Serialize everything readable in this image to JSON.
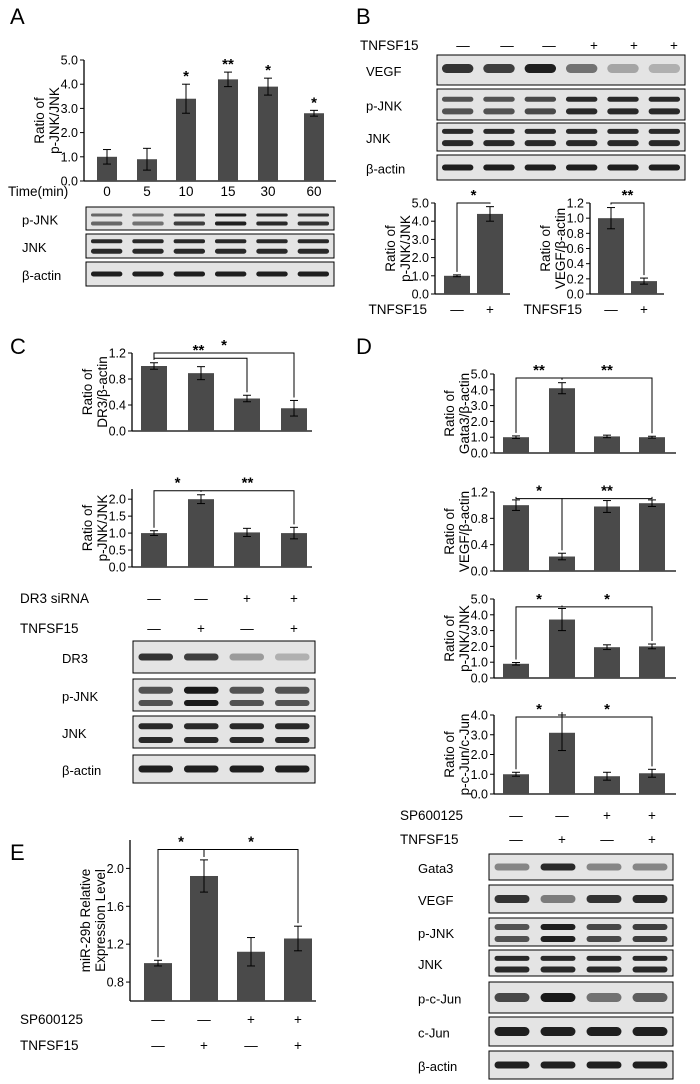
{
  "colors": {
    "bar": "#4a4a4a",
    "axis": "#000000",
    "band": "#141414",
    "blot_bg": "#e4e4e4"
  },
  "panels": [
    {
      "id": "A",
      "label": "A",
      "condition_rows": [
        {
          "label": "Time(min)",
          "values": [
            "0",
            "5",
            "10",
            "15",
            "30",
            "60"
          ]
        }
      ],
      "blots": [
        "p-JNK",
        "JNK",
        "β-actin"
      ]
    },
    {
      "id": "B",
      "label": "B",
      "condition_rows": [
        {
          "label": "TNFSF15",
          "values": [
            "—",
            "—",
            "—",
            "+",
            "+",
            "+"
          ]
        }
      ],
      "blots": [
        "VEGF",
        "p-JNK",
        "JNK",
        "β-actin"
      ]
    },
    {
      "id": "C",
      "label": "C",
      "condition_rows": [
        {
          "label": "DR3 siRNA",
          "values": [
            "—",
            "—",
            "+",
            "+"
          ]
        },
        {
          "label": "TNFSF15",
          "values": [
            "—",
            "+",
            "—",
            "+"
          ]
        }
      ],
      "blots": [
        "DR3",
        "p-JNK",
        "JNK",
        "β-actin"
      ]
    },
    {
      "id": "D",
      "label": "D",
      "condition_rows": [
        {
          "label": "SP600125",
          "values": [
            "—",
            "—",
            "+",
            "+"
          ]
        },
        {
          "label": "TNFSF15",
          "values": [
            "—",
            "+",
            "—",
            "+"
          ]
        }
      ],
      "blots": [
        "Gata3",
        "VEGF",
        "p-JNK",
        "JNK",
        "p-c-Jun",
        "c-Jun",
        "β-actin"
      ]
    },
    {
      "id": "E",
      "label": "E",
      "condition_rows": [
        {
          "label": "SP600125",
          "values": [
            "—",
            "—",
            "+",
            "+"
          ]
        },
        {
          "label": "TNFSF15",
          "values": [
            "—",
            "+",
            "—",
            "+"
          ]
        }
      ]
    }
  ],
  "chart_data": [
    {
      "id": "A-chart",
      "type": "bar",
      "ylabel": [
        "Ratio of",
        "p-JNK/JNK"
      ],
      "ylim": [
        0,
        5
      ],
      "yticks": [
        "0.0",
        "1.0",
        "2.0",
        "3.0",
        "4.0",
        "5.0"
      ],
      "xticklabels": [],
      "values": [
        1.0,
        0.9,
        3.4,
        4.2,
        3.9,
        2.8
      ],
      "errors": [
        0.3,
        0.45,
        0.6,
        0.3,
        0.35,
        0.12
      ],
      "bar_stars": [
        "",
        "",
        "*",
        "**",
        "*",
        "*"
      ],
      "brackets": []
    },
    {
      "id": "B-chart-1",
      "type": "bar",
      "ylabel": [
        "Ratio of",
        "p-JNK/JNK"
      ],
      "ylim": [
        0,
        5
      ],
      "yticks": [
        "0.0",
        "1.0",
        "2.0",
        "3.0",
        "4.0",
        "5.0"
      ],
      "xticklabels": [
        "—",
        "+"
      ],
      "xlabel": "TNFSF15",
      "values": [
        1.0,
        4.4
      ],
      "errors": [
        0.05,
        0.4
      ],
      "bar_stars": [],
      "brackets": [
        {
          "from": 0,
          "to": 1,
          "level": 5.0,
          "label": "*"
        }
      ]
    },
    {
      "id": "B-chart-2",
      "type": "bar",
      "ylabel": [
        "Ratio of",
        "VEGF/β-actin"
      ],
      "ylim": [
        0,
        1.2
      ],
      "yticks": [
        "0.0",
        "0.2",
        "0.4",
        "0.6",
        "0.8",
        "1.0",
        "1.2"
      ],
      "xticklabels": [
        "—",
        "+"
      ],
      "xlabel": "TNFSF15",
      "values": [
        1.0,
        0.17
      ],
      "errors": [
        0.14,
        0.04
      ],
      "bar_stars": [],
      "brackets": [
        {
          "from": 0,
          "to": 1,
          "level": 1.2,
          "label": "**"
        }
      ]
    },
    {
      "id": "C-chart-1",
      "type": "bar",
      "ylabel": [
        "Ratio of",
        "DR3/β-actin"
      ],
      "ylim": [
        0,
        1.2
      ],
      "yticks": [
        "0.0",
        "0.4",
        "0.8",
        "1.2"
      ],
      "xticklabels": [],
      "values": [
        1.0,
        0.89,
        0.5,
        0.35
      ],
      "errors": [
        0.05,
        0.1,
        0.05,
        0.12
      ],
      "bar_stars": [],
      "brackets": [
        {
          "from": 0,
          "to": 2,
          "level": 1.12,
          "label": "**"
        },
        {
          "from": 0,
          "to": 3,
          "level": 1.2,
          "label": "*"
        }
      ]
    },
    {
      "id": "C-chart-2",
      "type": "bar",
      "ylabel": [
        "Ratio of",
        "p-JNK/JNK"
      ],
      "ylim": [
        0,
        2.3
      ],
      "yticks": [
        "0.0",
        "0.5",
        "1.0",
        "1.5",
        "2.0"
      ],
      "xticklabels": [],
      "values": [
        1.0,
        2.0,
        1.02,
        1.0
      ],
      "errors": [
        0.07,
        0.13,
        0.12,
        0.17
      ],
      "bar_stars": [],
      "brackets": [
        {
          "from": 0,
          "to": 1,
          "level": 2.25,
          "label": "*"
        },
        {
          "from": 1,
          "to": 3,
          "level": 2.25,
          "label": "**"
        }
      ]
    },
    {
      "id": "D-chart-1",
      "type": "bar",
      "ylabel": [
        "Ratio of",
        "Gata3/β-actin"
      ],
      "ylim": [
        0,
        5
      ],
      "yticks": [
        "0.0",
        "1.0",
        "2.0",
        "3.0",
        "4.0",
        "5.0"
      ],
      "xticklabels": [],
      "values": [
        1.0,
        4.1,
        1.05,
        1.0
      ],
      "errors": [
        0.08,
        0.35,
        0.08,
        0.06
      ],
      "bar_stars": [],
      "brackets": [
        {
          "from": 0,
          "to": 1,
          "level": 4.75,
          "label": "**"
        },
        {
          "from": 1,
          "to": 3,
          "level": 4.75,
          "label": "**"
        }
      ]
    },
    {
      "id": "D-chart-2",
      "type": "bar",
      "ylabel": [
        "Ratio of",
        "VEGF/β-actin"
      ],
      "ylim": [
        0,
        1.2
      ],
      "yticks": [
        "0.0",
        "0.4",
        "0.8",
        "1.2"
      ],
      "xticklabels": [],
      "values": [
        1.0,
        0.22,
        0.98,
        1.03
      ],
      "errors": [
        0.08,
        0.05,
        0.09,
        0.05
      ],
      "bar_stars": [],
      "brackets": [
        {
          "from": 0,
          "to": 1,
          "level": 1.1,
          "label": "*"
        },
        {
          "from": 1,
          "to": 3,
          "level": 1.1,
          "label": "**"
        }
      ]
    },
    {
      "id": "D-chart-3",
      "type": "bar",
      "ylabel": [
        "Ratio of",
        "p-JNK/JNK"
      ],
      "ylim": [
        0,
        5
      ],
      "yticks": [
        "0.0",
        "1.0",
        "2.0",
        "3.0",
        "4.0",
        "5.0"
      ],
      "xticklabels": [],
      "values": [
        0.9,
        3.7,
        1.95,
        2.0
      ],
      "errors": [
        0.08,
        0.7,
        0.15,
        0.15
      ],
      "bar_stars": [],
      "brackets": [
        {
          "from": 0,
          "to": 1,
          "level": 4.5,
          "label": "*"
        },
        {
          "from": 1,
          "to": 3,
          "level": 4.5,
          "label": "*"
        }
      ]
    },
    {
      "id": "D-chart-4",
      "type": "bar",
      "ylabel": [
        "Ratio of",
        "p-c-Jun/c-Jun"
      ],
      "ylim": [
        0,
        4
      ],
      "yticks": [
        "0.0",
        "1.0",
        "2.0",
        "3.0",
        "4.0"
      ],
      "xticklabels": [],
      "values": [
        1.0,
        3.1,
        0.9,
        1.05
      ],
      "errors": [
        0.1,
        0.9,
        0.2,
        0.2
      ],
      "bar_stars": [],
      "brackets": [
        {
          "from": 0,
          "to": 1,
          "level": 3.9,
          "label": "*"
        },
        {
          "from": 1,
          "to": 3,
          "level": 3.9,
          "label": "*"
        }
      ]
    },
    {
      "id": "E-chart",
      "type": "bar",
      "ylabel": [
        "miR-29b Relative",
        "Expression Level"
      ],
      "ylim": [
        0.6,
        2.3
      ],
      "yticks": [
        "0.8",
        "1.2",
        "1.6",
        "2.0"
      ],
      "xticklabels": [],
      "values": [
        1.0,
        1.92,
        1.12,
        1.26
      ],
      "errors": [
        0.03,
        0.17,
        0.15,
        0.13
      ],
      "bar_stars": [],
      "brackets": [
        {
          "from": 0,
          "to": 1,
          "level": 2.2,
          "label": "*"
        },
        {
          "from": 1,
          "to": 3,
          "level": 2.2,
          "label": "*"
        }
      ]
    }
  ]
}
